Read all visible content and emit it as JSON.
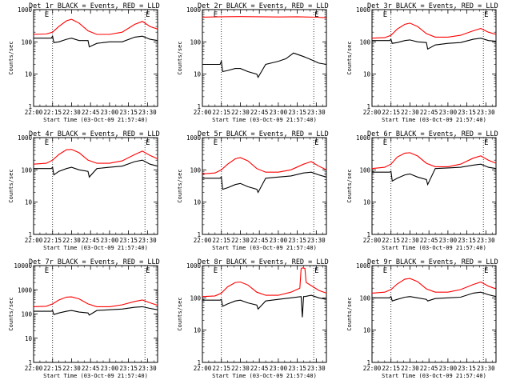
{
  "figure": {
    "xlabel": "Start Time (03-Oct-09 21:57:40)",
    "ylabel": "Counts/sec",
    "x_tick_labels": [
      "22:00",
      "22:15",
      "22:30",
      "22:45",
      "23:00",
      "23:15",
      "23:30"
    ],
    "vline_times_min": [
      15,
      88
    ],
    "marker_label": "E",
    "colors": {
      "events": "#000000",
      "lld": "#ff0000",
      "axes": "#000000"
    }
  },
  "chart_data": [
    {
      "type": "line",
      "title": "Det 1r BLACK = Events, RED = LLD",
      "xlim_min": [
        0,
        98
      ],
      "ylim": [
        1,
        1000
      ],
      "yscale": "log",
      "y_tick_labels": [
        "1",
        "10",
        "100",
        "1000"
      ],
      "series": [
        {
          "name": "Events",
          "x": [
            0,
            14,
            15,
            16,
            20,
            26,
            30,
            36,
            43,
            44,
            50,
            60,
            70,
            80,
            86,
            92,
            98
          ],
          "y": [
            130,
            130,
            150,
            95,
            100,
            120,
            130,
            110,
            110,
            70,
            90,
            100,
            100,
            140,
            150,
            120,
            110
          ]
        },
        {
          "name": "LLD",
          "x": [
            0,
            10,
            15,
            20,
            26,
            30,
            36,
            43,
            50,
            60,
            70,
            80,
            86,
            92,
            98
          ],
          "y": [
            170,
            175,
            200,
            300,
            450,
            500,
            380,
            220,
            170,
            170,
            200,
            350,
            430,
            300,
            250
          ]
        }
      ]
    },
    {
      "type": "line",
      "title": "Det 2r BLACK = Events, RED = LLD",
      "xlim_min": [
        0,
        98
      ],
      "ylim": [
        1,
        1000
      ],
      "yscale": "log",
      "y_tick_labels": [
        "1",
        "10",
        "100",
        "1000"
      ],
      "series": [
        {
          "name": "Events",
          "x": [
            0,
            8,
            14,
            15,
            16,
            20,
            26,
            30,
            36,
            43,
            44,
            50,
            60,
            66,
            72,
            80,
            86,
            92,
            98
          ],
          "y": [
            20,
            20,
            20,
            25,
            12,
            13,
            15,
            15,
            12,
            10,
            8,
            20,
            25,
            30,
            45,
            35,
            28,
            22,
            20
          ]
        },
        {
          "name": "LLD",
          "x": [
            0,
            15,
            30,
            45,
            60,
            75,
            90,
            98
          ],
          "y": [
            580,
            600,
            610,
            600,
            590,
            600,
            580,
            560
          ]
        }
      ]
    },
    {
      "type": "line",
      "title": "Det 3r BLACK = Events, RED = LLD",
      "xlim_min": [
        0,
        98
      ],
      "ylim": [
        1,
        1000
      ],
      "yscale": "log",
      "y_tick_labels": [
        "1",
        "10",
        "100",
        "1000"
      ],
      "series": [
        {
          "name": "Events",
          "x": [
            0,
            14,
            15,
            16,
            20,
            26,
            30,
            36,
            43,
            44,
            50,
            60,
            70,
            80,
            86,
            92,
            98
          ],
          "y": [
            110,
            110,
            120,
            90,
            95,
            110,
            115,
            100,
            95,
            60,
            80,
            90,
            95,
            120,
            130,
            110,
            105
          ]
        },
        {
          "name": "LLD",
          "x": [
            0,
            10,
            15,
            20,
            26,
            30,
            36,
            43,
            50,
            60,
            70,
            80,
            86,
            92,
            98
          ],
          "y": [
            130,
            135,
            160,
            250,
            350,
            380,
            300,
            180,
            140,
            140,
            160,
            220,
            260,
            200,
            170
          ]
        }
      ]
    },
    {
      "type": "line",
      "title": "Det 4r BLACK = Events, RED = LLD",
      "xlim_min": [
        0,
        98
      ],
      "ylim": [
        1,
        1000
      ],
      "yscale": "log",
      "y_tick_labels": [
        "1",
        "10",
        "100",
        "1000"
      ],
      "series": [
        {
          "name": "Events",
          "x": [
            0,
            14,
            15,
            16,
            20,
            26,
            30,
            36,
            43,
            44,
            50,
            60,
            70,
            80,
            86,
            92,
            98
          ],
          "y": [
            110,
            110,
            120,
            70,
            90,
            110,
            120,
            100,
            90,
            60,
            110,
            120,
            130,
            180,
            200,
            150,
            130
          ]
        },
        {
          "name": "LLD",
          "x": [
            0,
            10,
            15,
            20,
            26,
            30,
            36,
            43,
            50,
            60,
            70,
            80,
            86,
            92,
            98
          ],
          "y": [
            150,
            160,
            200,
            300,
            420,
            430,
            340,
            200,
            160,
            160,
            190,
            300,
            380,
            280,
            220
          ]
        }
      ]
    },
    {
      "type": "line",
      "title": "Det 5r BLACK = Events, RED = LLD",
      "xlim_min": [
        0,
        98
      ],
      "ylim": [
        1,
        1000
      ],
      "yscale": "log",
      "y_tick_labels": [
        "1",
        "10",
        "100",
        "1000"
      ],
      "series": [
        {
          "name": "Events",
          "x": [
            0,
            14,
            15,
            16,
            20,
            26,
            30,
            36,
            43,
            44,
            50,
            60,
            70,
            80,
            86,
            92,
            98
          ],
          "y": [
            55,
            55,
            60,
            25,
            28,
            35,
            38,
            30,
            25,
            20,
            55,
            60,
            65,
            80,
            85,
            70,
            60
          ]
        },
        {
          "name": "LLD",
          "x": [
            0,
            10,
            15,
            20,
            26,
            30,
            36,
            43,
            50,
            60,
            70,
            80,
            86,
            92,
            98
          ],
          "y": [
            75,
            80,
            100,
            150,
            220,
            240,
            190,
            110,
            85,
            85,
            100,
            150,
            180,
            130,
            100
          ]
        }
      ]
    },
    {
      "type": "line",
      "title": "Det 6r BLACK = Events, RED = LLD",
      "xlim_min": [
        0,
        98
      ],
      "ylim": [
        1,
        1000
      ],
      "yscale": "log",
      "y_tick_labels": [
        "1",
        "10",
        "100",
        "1000"
      ],
      "series": [
        {
          "name": "Events",
          "x": [
            0,
            14,
            15,
            16,
            20,
            26,
            30,
            36,
            43,
            44,
            50,
            60,
            70,
            80,
            86,
            92,
            98
          ],
          "y": [
            85,
            85,
            90,
            45,
            55,
            70,
            75,
            60,
            50,
            35,
            110,
            115,
            120,
            140,
            150,
            120,
            110
          ]
        },
        {
          "name": "LLD",
          "x": [
            0,
            10,
            15,
            20,
            26,
            30,
            36,
            43,
            50,
            60,
            70,
            80,
            86,
            92,
            98
          ],
          "y": [
            110,
            120,
            150,
            250,
            330,
            340,
            270,
            160,
            125,
            125,
            150,
            230,
            270,
            200,
            160
          ]
        }
      ]
    },
    {
      "type": "line",
      "title": "Det 7r BLACK = Events, RED = LLD",
      "xlim_min": [
        0,
        98
      ],
      "ylim": [
        1,
        10000
      ],
      "yscale": "log",
      "y_tick_labels": [
        "1",
        "10",
        "100",
        "1000",
        "10000"
      ],
      "series": [
        {
          "name": "Events",
          "x": [
            0,
            14,
            15,
            16,
            20,
            26,
            30,
            36,
            43,
            44,
            50,
            60,
            70,
            80,
            86,
            92,
            98
          ],
          "y": [
            130,
            130,
            140,
            95,
            110,
            130,
            140,
            120,
            110,
            90,
            140,
            150,
            160,
            190,
            200,
            170,
            150
          ]
        },
        {
          "name": "LLD",
          "x": [
            0,
            10,
            15,
            20,
            26,
            30,
            36,
            43,
            50,
            60,
            70,
            80,
            86,
            92,
            98
          ],
          "y": [
            200,
            210,
            260,
            380,
            500,
            510,
            420,
            260,
            200,
            200,
            240,
            330,
            380,
            290,
            230
          ]
        }
      ]
    },
    {
      "type": "line",
      "title": "Det 8r BLACK = Events, RED = LLD",
      "xlim_min": [
        0,
        98
      ],
      "ylim": [
        1,
        1000
      ],
      "yscale": "log",
      "y_tick_labels": [
        "1",
        "10",
        "100",
        "1000"
      ],
      "series": [
        {
          "name": "Events",
          "x": [
            0,
            14,
            15,
            16,
            20,
            26,
            30,
            36,
            43,
            44,
            50,
            60,
            70,
            78,
            79,
            80,
            81,
            86,
            92,
            98
          ],
          "y": [
            85,
            85,
            90,
            55,
            65,
            80,
            85,
            70,
            60,
            45,
            80,
            90,
            100,
            110,
            25,
            110,
            110,
            120,
            100,
            90
          ]
        },
        {
          "name": "LLD",
          "x": [
            0,
            10,
            15,
            20,
            26,
            30,
            36,
            43,
            50,
            60,
            70,
            77,
            78,
            79,
            81,
            82,
            86,
            92,
            98
          ],
          "y": [
            110,
            115,
            140,
            220,
            300,
            310,
            250,
            150,
            120,
            120,
            150,
            200,
            800,
            850,
            820,
            300,
            240,
            170,
            140
          ]
        }
      ]
    },
    {
      "type": "line",
      "title": "Det 9r BLACK = Events, RED = LLD",
      "xlim_min": [
        0,
        98
      ],
      "ylim": [
        1,
        1000
      ],
      "yscale": "log",
      "y_tick_labels": [
        "1",
        "10",
        "100",
        "1000"
      ],
      "series": [
        {
          "name": "Events",
          "x": [
            0,
            14,
            15,
            16,
            20,
            26,
            30,
            36,
            43,
            44,
            50,
            60,
            70,
            80,
            86,
            92,
            98
          ],
          "y": [
            100,
            100,
            110,
            80,
            90,
            105,
            110,
            100,
            90,
            80,
            95,
            100,
            105,
            140,
            150,
            125,
            110
          ]
        },
        {
          "name": "LLD",
          "x": [
            0,
            10,
            15,
            20,
            26,
            30,
            36,
            43,
            50,
            60,
            70,
            80,
            86,
            92,
            98
          ],
          "y": [
            140,
            150,
            180,
            270,
            380,
            400,
            320,
            190,
            150,
            150,
            180,
            260,
            310,
            230,
            190
          ]
        }
      ]
    }
  ]
}
